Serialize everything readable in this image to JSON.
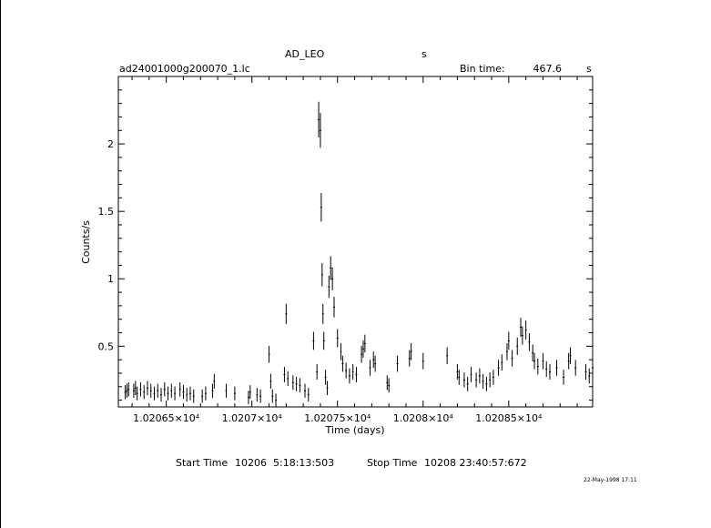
{
  "header": {
    "object_name": "AD_LEO",
    "object_unit": "s",
    "file_name": "ad24001000g200070_1.lc",
    "bin_time_label": "Bin time:",
    "bin_time_value": "467.6",
    "bin_time_unit": "s"
  },
  "footer": {
    "start_label": "Start Time",
    "start_value": "10206  5:18:13:503",
    "stop_label": "Stop Time",
    "stop_value": "10208 23:40:57:672",
    "plot_date": "22-May-1998 17:11"
  },
  "chart_data": {
    "type": "scatter",
    "title": "AD_LEO",
    "xlabel": "Time (days)",
    "ylabel": "Counts/s",
    "xlim": [
      10206.22,
      10208.99
    ],
    "ylim": [
      0.05,
      2.5
    ],
    "grid": false,
    "x_ticks": [
      {
        "value": 10206.5,
        "label": "1.02065×10⁴"
      },
      {
        "value": 10207.0,
        "label": "1.0207×10⁴"
      },
      {
        "value": 10207.5,
        "label": "1.02075×10⁴"
      },
      {
        "value": 10208.0,
        "label": "1.0208×10⁴"
      },
      {
        "value": 10208.5,
        "label": "1.02085×10⁴"
      }
    ],
    "y_ticks": [
      {
        "value": 0.5,
        "label": "0.5"
      },
      {
        "value": 1.0,
        "label": "1"
      },
      {
        "value": 1.5,
        "label": "1.5"
      },
      {
        "value": 2.0,
        "label": "2"
      }
    ],
    "points": [
      [
        10206.26,
        0.16
      ],
      [
        10206.27,
        0.17
      ],
      [
        10206.28,
        0.18
      ],
      [
        10206.31,
        0.17
      ],
      [
        10206.32,
        0.19
      ],
      [
        10206.33,
        0.15
      ],
      [
        10206.35,
        0.18
      ],
      [
        10206.37,
        0.16
      ],
      [
        10206.39,
        0.19
      ],
      [
        10206.41,
        0.17
      ],
      [
        10206.43,
        0.15
      ],
      [
        10206.45,
        0.17
      ],
      [
        10206.47,
        0.14
      ],
      [
        10206.49,
        0.18
      ],
      [
        10206.51,
        0.15
      ],
      [
        10206.53,
        0.17
      ],
      [
        10206.55,
        0.15
      ],
      [
        10206.58,
        0.18
      ],
      [
        10206.6,
        0.16
      ],
      [
        10206.62,
        0.14
      ],
      [
        10206.64,
        0.15
      ],
      [
        10206.66,
        0.13
      ],
      [
        10206.71,
        0.13
      ],
      [
        10206.73,
        0.15
      ],
      [
        10206.77,
        0.17
      ],
      [
        10206.78,
        0.24
      ],
      [
        10206.85,
        0.17
      ],
      [
        10206.9,
        0.15
      ],
      [
        10206.98,
        0.12
      ],
      [
        10206.99,
        0.16
      ],
      [
        10207.03,
        0.14
      ],
      [
        10207.05,
        0.13
      ],
      [
        10207.1,
        0.44
      ],
      [
        10207.11,
        0.24
      ],
      [
        10207.12,
        0.13
      ],
      [
        10207.14,
        0.1
      ],
      [
        10207.19,
        0.29
      ],
      [
        10207.2,
        0.74
      ],
      [
        10207.21,
        0.26
      ],
      [
        10207.24,
        0.23
      ],
      [
        10207.26,
        0.22
      ],
      [
        10207.28,
        0.21
      ],
      [
        10207.31,
        0.17
      ],
      [
        10207.33,
        0.14
      ],
      [
        10207.36,
        0.54
      ],
      [
        10207.38,
        0.31
      ],
      [
        10207.39,
        2.18
      ],
      [
        10207.4,
        2.1
      ],
      [
        10207.405,
        1.53
      ],
      [
        10207.41,
        1.03
      ],
      [
        10207.415,
        0.74
      ],
      [
        10207.42,
        0.54
      ],
      [
        10207.43,
        0.27
      ],
      [
        10207.44,
        0.19
      ],
      [
        10207.45,
        0.94
      ],
      [
        10207.46,
        1.08
      ],
      [
        10207.47,
        1.0
      ],
      [
        10207.48,
        0.79
      ],
      [
        10207.5,
        0.56
      ],
      [
        10207.52,
        0.46
      ],
      [
        10207.53,
        0.37
      ],
      [
        10207.55,
        0.32
      ],
      [
        10207.57,
        0.28
      ],
      [
        10207.59,
        0.31
      ],
      [
        10207.61,
        0.29
      ],
      [
        10207.64,
        0.44
      ],
      [
        10207.65,
        0.48
      ],
      [
        10207.66,
        0.52
      ],
      [
        10207.69,
        0.34
      ],
      [
        10207.71,
        0.4
      ],
      [
        10207.72,
        0.37
      ],
      [
        10207.79,
        0.23
      ],
      [
        10207.8,
        0.21
      ],
      [
        10207.85,
        0.37
      ],
      [
        10207.92,
        0.41
      ],
      [
        10207.93,
        0.46
      ],
      [
        10208.0,
        0.39
      ],
      [
        10208.14,
        0.43
      ],
      [
        10208.2,
        0.31
      ],
      [
        10208.21,
        0.27
      ],
      [
        10208.24,
        0.25
      ],
      [
        10208.26,
        0.22
      ],
      [
        10208.28,
        0.29
      ],
      [
        10208.31,
        0.25
      ],
      [
        10208.33,
        0.28
      ],
      [
        10208.35,
        0.24
      ],
      [
        10208.37,
        0.22
      ],
      [
        10208.39,
        0.25
      ],
      [
        10208.41,
        0.27
      ],
      [
        10208.44,
        0.34
      ],
      [
        10208.46,
        0.38
      ],
      [
        10208.49,
        0.46
      ],
      [
        10208.5,
        0.54
      ],
      [
        10208.52,
        0.41
      ],
      [
        10208.55,
        0.5
      ],
      [
        10208.57,
        0.64
      ],
      [
        10208.58,
        0.58
      ],
      [
        10208.6,
        0.62
      ],
      [
        10208.62,
        0.53
      ],
      [
        10208.64,
        0.45
      ],
      [
        10208.65,
        0.39
      ],
      [
        10208.67,
        0.35
      ],
      [
        10208.7,
        0.39
      ],
      [
        10208.72,
        0.33
      ],
      [
        10208.74,
        0.31
      ],
      [
        10208.78,
        0.34
      ],
      [
        10208.82,
        0.27
      ],
      [
        10208.85,
        0.39
      ],
      [
        10208.86,
        0.43
      ],
      [
        10208.89,
        0.34
      ],
      [
        10208.95,
        0.31
      ],
      [
        10208.97,
        0.28
      ],
      [
        10208.99,
        0.34
      ]
    ]
  }
}
